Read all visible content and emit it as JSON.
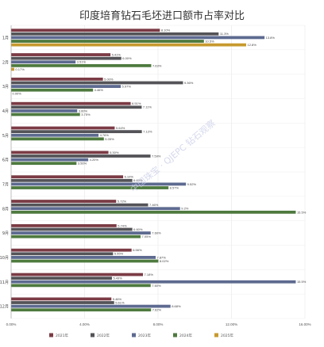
{
  "chart_data": {
    "type": "bar",
    "orientation": "horizontal",
    "title": "印度培育钻石毛坯进口额市占率对比",
    "categories": [
      "1月",
      "2月",
      "3月",
      "4月",
      "5月",
      "6月",
      "7月",
      "8月",
      "9月",
      "10月",
      "11月",
      "12月"
    ],
    "series": [
      {
        "name": "2021年",
        "color": "#7b3b45",
        "values": [
          8.1,
          5.41,
          5.0,
          6.51,
          5.64,
          5.3,
          6.1,
          5.72,
          5.74,
          6.56,
          7.18,
          5.46
        ]
      },
      {
        "name": "2022年",
        "color": "#545458",
        "values": [
          11.3,
          6.0,
          9.36,
          7.11,
          7.12,
          7.59,
          6.6,
          7.46,
          6.6,
          5.55,
          5.49,
          5.61
        ]
      },
      {
        "name": "2023年",
        "color": "#5d6a90",
        "values": [
          13.8,
          3.51,
          5.97,
          3.6,
          4.76,
          4.2,
          9.52,
          9.2,
          7.6,
          7.87,
          15.5,
          8.68
        ]
      },
      {
        "name": "2024年",
        "color": "#4e7a3f",
        "values": [
          10.5,
          7.63,
          4.46,
          3.75,
          5.05,
          3.56,
          8.57,
          15.5,
          7.05,
          8.02,
          7.6,
          7.62
        ]
      },
      {
        "name": "2025年",
        "color": "#c79a2e",
        "values": [
          12.8,
          0.17,
          0.0,
          0.0,
          0.0,
          0.0,
          0.0,
          0.0,
          0.0,
          0.0,
          0.0,
          0.0
        ]
      }
    ],
    "value_labels": [
      [
        "8.10%",
        "5.41%",
        "5.00%",
        "6.51%",
        "5.64%",
        "5.30%",
        "6.10%",
        "5.72%",
        "5.74%",
        "6.56%",
        "7.18%",
        "5.46%"
      ],
      [
        "11.3%",
        "6.00%",
        "9.36%",
        "7.11%",
        "7.12%",
        "7.59%",
        "6.60%",
        "7.46%",
        "6.60%",
        "5.55%",
        "5.49%",
        "5.61%"
      ],
      [
        "13.8%",
        "3.51%",
        "5.97%",
        "3.60%",
        "4.76%",
        "4.20%",
        "9.52%",
        "9.2%",
        "7.60%",
        "7.87%",
        "15.5%",
        "8.68%"
      ],
      [
        "10.5%",
        "7.63%",
        "4.46%",
        "3.75%",
        "5.05%",
        "3.56%",
        "8.57%",
        "15.5%",
        "7.05%",
        "8.02%",
        "7.60%",
        "7.62%"
      ],
      [
        "12.8%",
        "0.17%",
        "0.00%",
        "",
        "",
        "",
        "",
        "",
        "",
        "",
        "",
        ""
      ]
    ],
    "x_ticks": [
      "0.00%",
      "4.00%",
      "8.00%",
      "12.00%",
      "16.00%"
    ],
    "xlim": [
      0,
      16
    ],
    "grid": true,
    "legend_position": "bottom",
    "watermark": "中国珠宝 · QJEPC 钻石观察"
  }
}
